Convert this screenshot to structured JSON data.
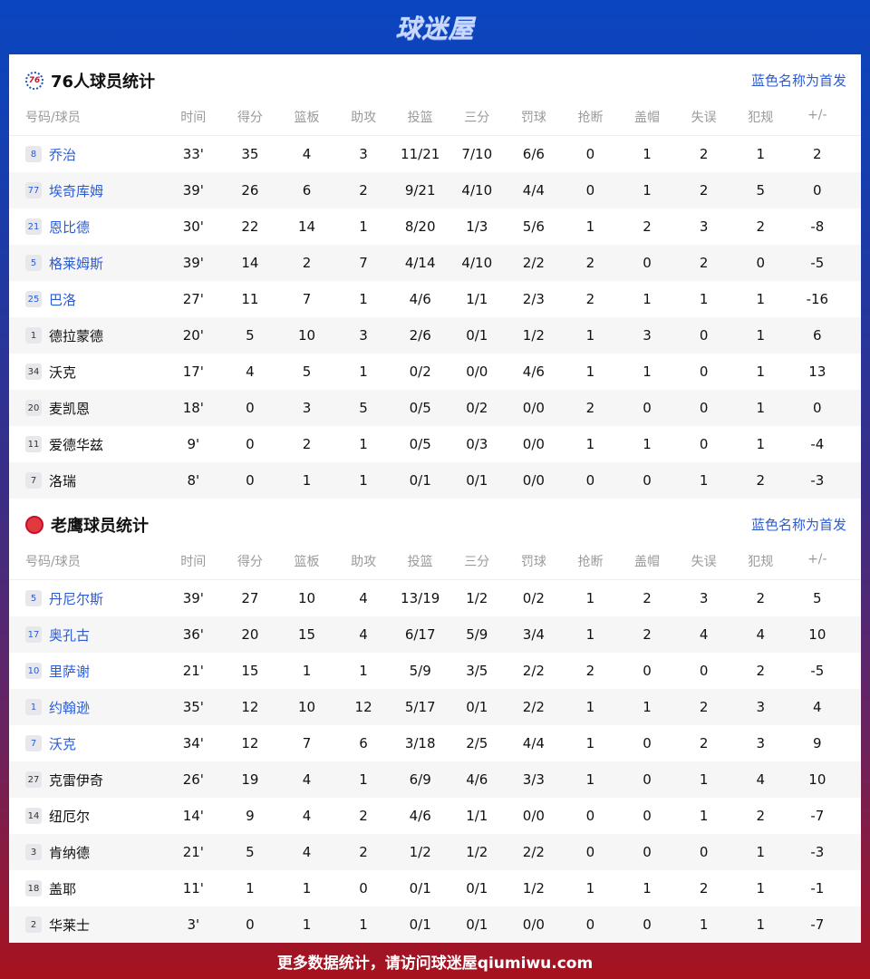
{
  "brand": "球迷屋",
  "footer": "更多数据统计，请访问球迷屋qiumiwu.com",
  "columns": [
    "号码/球员",
    "时间",
    "得分",
    "篮板",
    "助攻",
    "投篮",
    "三分",
    "罚球",
    "抢断",
    "盖帽",
    "失误",
    "犯规",
    "+/-"
  ],
  "colors": {
    "starter": "#2a5bd7",
    "header_top": "#0a46c0",
    "footer": "#a8121e"
  },
  "teams": [
    {
      "title": "76人球员统计",
      "logo": "76",
      "note": "蓝色名称为首发",
      "players": [
        {
          "no": "8",
          "name": "乔治",
          "starter": true,
          "stats": [
            "33'",
            "35",
            "4",
            "3",
            "11/21",
            "7/10",
            "6/6",
            "0",
            "1",
            "2",
            "1",
            "2"
          ]
        },
        {
          "no": "77",
          "name": "埃奇库姆",
          "starter": true,
          "stats": [
            "39'",
            "26",
            "6",
            "2",
            "9/21",
            "4/10",
            "4/4",
            "0",
            "1",
            "2",
            "5",
            "0"
          ]
        },
        {
          "no": "21",
          "name": "恩比德",
          "starter": true,
          "stats": [
            "30'",
            "22",
            "14",
            "1",
            "8/20",
            "1/3",
            "5/6",
            "1",
            "2",
            "3",
            "2",
            "-8"
          ]
        },
        {
          "no": "5",
          "name": "格莱姆斯",
          "starter": true,
          "stats": [
            "39'",
            "14",
            "2",
            "7",
            "4/14",
            "4/10",
            "2/2",
            "2",
            "0",
            "2",
            "0",
            "-5"
          ]
        },
        {
          "no": "25",
          "name": "巴洛",
          "starter": true,
          "stats": [
            "27'",
            "11",
            "7",
            "1",
            "4/6",
            "1/1",
            "2/3",
            "2",
            "1",
            "1",
            "1",
            "-16"
          ]
        },
        {
          "no": "1",
          "name": "德拉蒙德",
          "starter": false,
          "stats": [
            "20'",
            "5",
            "10",
            "3",
            "2/6",
            "0/1",
            "1/2",
            "1",
            "3",
            "0",
            "1",
            "6"
          ]
        },
        {
          "no": "34",
          "name": "沃克",
          "starter": false,
          "stats": [
            "17'",
            "4",
            "5",
            "1",
            "0/2",
            "0/0",
            "4/6",
            "1",
            "1",
            "0",
            "1",
            "13"
          ]
        },
        {
          "no": "20",
          "name": "麦凯恩",
          "starter": false,
          "stats": [
            "18'",
            "0",
            "3",
            "5",
            "0/5",
            "0/2",
            "0/0",
            "2",
            "0",
            "0",
            "1",
            "0"
          ]
        },
        {
          "no": "11",
          "name": "爱德华兹",
          "starter": false,
          "stats": [
            "9'",
            "0",
            "2",
            "1",
            "0/5",
            "0/3",
            "0/0",
            "1",
            "1",
            "0",
            "1",
            "-4"
          ]
        },
        {
          "no": "7",
          "name": "洛瑞",
          "starter": false,
          "stats": [
            "8'",
            "0",
            "1",
            "1",
            "0/1",
            "0/1",
            "0/0",
            "0",
            "0",
            "1",
            "2",
            "-3"
          ]
        }
      ]
    },
    {
      "title": "老鹰球员统计",
      "logo": "hawks",
      "note": "蓝色名称为首发",
      "players": [
        {
          "no": "5",
          "name": "丹尼尔斯",
          "starter": true,
          "stats": [
            "39'",
            "27",
            "10",
            "4",
            "13/19",
            "1/2",
            "0/2",
            "1",
            "2",
            "3",
            "2",
            "5"
          ]
        },
        {
          "no": "17",
          "name": "奥孔古",
          "starter": true,
          "stats": [
            "36'",
            "20",
            "15",
            "4",
            "6/17",
            "5/9",
            "3/4",
            "1",
            "2",
            "4",
            "4",
            "10"
          ]
        },
        {
          "no": "10",
          "name": "里萨谢",
          "starter": true,
          "stats": [
            "21'",
            "15",
            "1",
            "1",
            "5/9",
            "3/5",
            "2/2",
            "2",
            "0",
            "0",
            "2",
            "-5"
          ]
        },
        {
          "no": "1",
          "name": "约翰逊",
          "starter": true,
          "stats": [
            "35'",
            "12",
            "10",
            "12",
            "5/17",
            "0/1",
            "2/2",
            "1",
            "1",
            "2",
            "3",
            "4"
          ]
        },
        {
          "no": "7",
          "name": "沃克",
          "starter": true,
          "stats": [
            "34'",
            "12",
            "7",
            "6",
            "3/18",
            "2/5",
            "4/4",
            "1",
            "0",
            "2",
            "3",
            "9"
          ]
        },
        {
          "no": "27",
          "name": "克雷伊奇",
          "starter": false,
          "stats": [
            "26'",
            "19",
            "4",
            "1",
            "6/9",
            "4/6",
            "3/3",
            "1",
            "0",
            "1",
            "4",
            "10"
          ]
        },
        {
          "no": "14",
          "name": "纽厄尔",
          "starter": false,
          "stats": [
            "14'",
            "9",
            "4",
            "2",
            "4/6",
            "1/1",
            "0/0",
            "0",
            "0",
            "1",
            "2",
            "-7"
          ]
        },
        {
          "no": "3",
          "name": "肯纳德",
          "starter": false,
          "stats": [
            "21'",
            "5",
            "4",
            "2",
            "1/2",
            "1/2",
            "2/2",
            "0",
            "0",
            "0",
            "1",
            "-3"
          ]
        },
        {
          "no": "18",
          "name": "盖耶",
          "starter": false,
          "stats": [
            "11'",
            "1",
            "1",
            "0",
            "0/1",
            "0/1",
            "1/2",
            "1",
            "1",
            "2",
            "1",
            "-1"
          ]
        },
        {
          "no": "2",
          "name": "华莱士",
          "starter": false,
          "stats": [
            "3'",
            "0",
            "1",
            "1",
            "0/1",
            "0/1",
            "0/0",
            "0",
            "0",
            "1",
            "1",
            "-7"
          ]
        }
      ]
    }
  ]
}
